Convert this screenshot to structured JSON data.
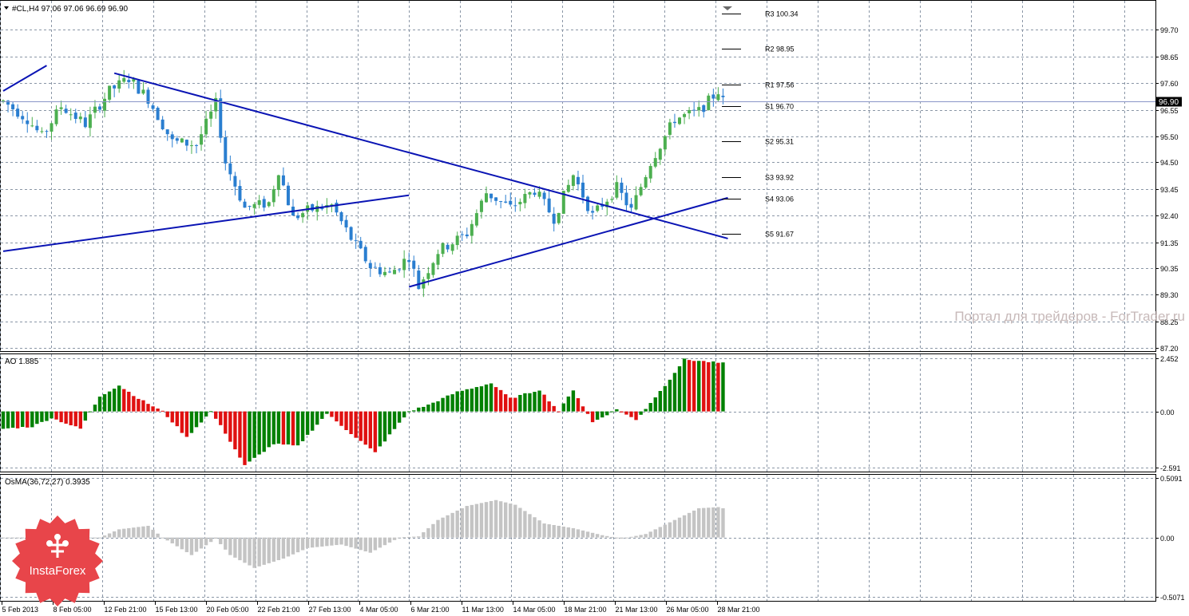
{
  "header": {
    "symbol_line": "#CL,H4  97.06 97.06 96.69 96.90"
  },
  "watermark": "Портал для трейдеров - ForTrader.ru",
  "logo": {
    "text": "InstaForex",
    "icon": "insta-tree-icon",
    "color": "#e8454a"
  },
  "colors": {
    "bull": "#4caf50",
    "bear": "#2a7ed0",
    "trendline": "#0a14b4",
    "ao_up": "#008000",
    "ao_down": "#e01010",
    "osma": "#c4c4c4",
    "grid": "#8a96a6"
  },
  "x_axis": {
    "labels": [
      "5 Feb 2013",
      "8 Feb 05:00",
      "12 Feb 21:00",
      "15 Feb 13:00",
      "20 Feb 05:00",
      "22 Feb 21:00",
      "27 Feb 13:00",
      "4 Mar 05:00",
      "6 Mar 21:00",
      "11 Mar 13:00",
      "14 Mar 05:00",
      "18 Mar 21:00",
      "21 Mar 13:00",
      "26 Mar 05:00",
      "28 Mar 21:00"
    ]
  },
  "price_panel": {
    "title": "#CL,H4",
    "ylim": [
      87.2,
      100.75
    ],
    "tick_labels": [
      "99.70",
      "98.65",
      "97.60",
      "96.55",
      "95.50",
      "94.50",
      "93.45",
      "92.40",
      "91.35",
      "90.35",
      "89.30",
      "88.25",
      "87.20"
    ],
    "current_price": "96.90",
    "pivot_levels": [
      {
        "label": "R3 100.34",
        "value": 100.34
      },
      {
        "label": "R2 98.95",
        "value": 98.95
      },
      {
        "label": "R1 97.56",
        "value": 97.56
      },
      {
        "label": "S1 96.70",
        "value": 96.7
      },
      {
        "label": "S2 95.31",
        "value": 95.31
      },
      {
        "label": "S3 93.92",
        "value": 93.92
      },
      {
        "label": "S4 93.06",
        "value": 93.06
      },
      {
        "label": "S5 91.67",
        "value": 91.67
      }
    ]
  },
  "ao_panel": {
    "label": "AO 1.885",
    "tick_labels": [
      "2.452",
      "0.00",
      "-2.591"
    ],
    "ylim": [
      -2.591,
      2.452
    ]
  },
  "osma_panel": {
    "label": "OsMA(36,72,27) 0.3935",
    "tick_labels": [
      "0.5091",
      "0.00",
      "-0.5071"
    ],
    "ylim": [
      -0.5071,
      0.5091
    ]
  },
  "chart_data": {
    "type": "candlestick",
    "title": "#CL,H4",
    "bars": 150,
    "price_path": [
      [
        0,
        96.9
      ],
      [
        5,
        96.2
      ],
      [
        8,
        95.5
      ],
      [
        12,
        96.7
      ],
      [
        17,
        96.0
      ],
      [
        22,
        97.3
      ],
      [
        26,
        97.8
      ],
      [
        30,
        97.0
      ],
      [
        35,
        95.3
      ],
      [
        40,
        95.2
      ],
      [
        44,
        96.8
      ],
      [
        46,
        94.5
      ],
      [
        50,
        92.7
      ],
      [
        55,
        92.9
      ],
      [
        57,
        94.2
      ],
      [
        60,
        92.3
      ],
      [
        63,
        92.6
      ],
      [
        68,
        92.8
      ],
      [
        72,
        91.5
      ],
      [
        76,
        90.4
      ],
      [
        80,
        90.1
      ],
      [
        84,
        90.8
      ],
      [
        86,
        89.6
      ],
      [
        90,
        91.0
      ],
      [
        96,
        91.7
      ],
      [
        100,
        93.3
      ],
      [
        105,
        92.7
      ],
      [
        110,
        93.4
      ],
      [
        114,
        92.3
      ],
      [
        118,
        94.0
      ],
      [
        122,
        92.4
      ],
      [
        127,
        93.5
      ],
      [
        130,
        92.6
      ],
      [
        134,
        94.5
      ],
      [
        139,
        96.2
      ],
      [
        144,
        96.5
      ],
      [
        148,
        97.3
      ],
      [
        149,
        96.9
      ]
    ],
    "ao_path": [
      [
        0,
        -0.8
      ],
      [
        6,
        -0.7
      ],
      [
        10,
        -0.3
      ],
      [
        16,
        -0.8
      ],
      [
        20,
        0.7
      ],
      [
        24,
        1.2
      ],
      [
        28,
        0.6
      ],
      [
        33,
        0.0
      ],
      [
        38,
        -1.2
      ],
      [
        43,
        0.0
      ],
      [
        46,
        -1.0
      ],
      [
        50,
        -2.5
      ],
      [
        56,
        -1.5
      ],
      [
        61,
        -1.6
      ],
      [
        67,
        -0.1
      ],
      [
        73,
        -1.2
      ],
      [
        77,
        -1.9
      ],
      [
        84,
        0.0
      ],
      [
        88,
        0.3
      ],
      [
        94,
        0.9
      ],
      [
        101,
        1.3
      ],
      [
        105,
        0.6
      ],
      [
        111,
        1.0
      ],
      [
        115,
        0.0
      ],
      [
        118,
        1.0
      ],
      [
        122,
        -0.5
      ],
      [
        127,
        0.1
      ],
      [
        131,
        -0.4
      ],
      [
        137,
        1.2
      ],
      [
        141,
        2.4
      ],
      [
        150,
        2.2
      ]
    ],
    "osma_path": [
      [
        0,
        0.0
      ],
      [
        20,
        0.0
      ],
      [
        24,
        0.07
      ],
      [
        30,
        0.1
      ],
      [
        33,
        0.0
      ],
      [
        39,
        -0.15
      ],
      [
        44,
        -0.01
      ],
      [
        47,
        -0.15
      ],
      [
        52,
        -0.26
      ],
      [
        58,
        -0.18
      ],
      [
        63,
        -0.09
      ],
      [
        70,
        -0.06
      ],
      [
        76,
        -0.13
      ],
      [
        82,
        0.0
      ],
      [
        86,
        0.01
      ],
      [
        90,
        0.15
      ],
      [
        96,
        0.27
      ],
      [
        102,
        0.32
      ],
      [
        106,
        0.28
      ],
      [
        112,
        0.12
      ],
      [
        118,
        0.08
      ],
      [
        124,
        0.02
      ],
      [
        128,
        -0.01
      ],
      [
        133,
        0.03
      ],
      [
        139,
        0.15
      ],
      [
        144,
        0.25
      ],
      [
        148,
        0.26
      ],
      [
        150,
        0.24
      ]
    ],
    "trendlines": [
      {
        "from": [
          0,
          97.3
        ],
        "to": [
          9,
          98.3
        ]
      },
      {
        "from": [
          23,
          98.0
        ],
        "to": [
          150,
          91.5
        ]
      },
      {
        "from": [
          0,
          91.0
        ],
        "to": [
          84,
          93.2
        ]
      },
      {
        "from": [
          84,
          89.6
        ],
        "to": [
          150,
          93.1
        ]
      }
    ]
  }
}
